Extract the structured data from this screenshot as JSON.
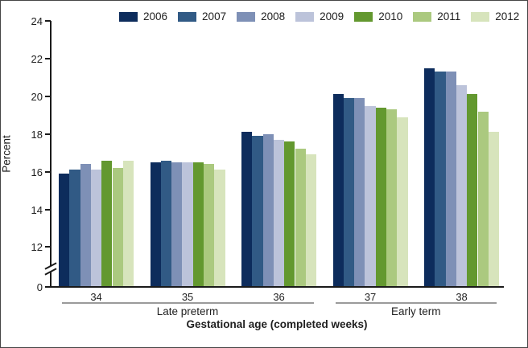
{
  "chart_data": {
    "type": "bar",
    "title": "",
    "xlabel": "Gestational age (completed weeks)",
    "ylabel": "Percent",
    "categories": [
      "34",
      "35",
      "36",
      "37",
      "38"
    ],
    "series": [
      {
        "name": "2006",
        "color": "#0d2c5c",
        "values": [
          15.9,
          16.5,
          18.1,
          20.1,
          21.5
        ]
      },
      {
        "name": "2007",
        "color": "#315a85",
        "values": [
          16.1,
          16.6,
          17.9,
          19.9,
          21.3
        ]
      },
      {
        "name": "2008",
        "color": "#7e90b6",
        "values": [
          16.4,
          16.5,
          18.0,
          19.9,
          21.3
        ]
      },
      {
        "name": "2009",
        "color": "#bcc3da",
        "values": [
          16.1,
          16.5,
          17.7,
          19.5,
          20.6
        ]
      },
      {
        "name": "2010",
        "color": "#63982f",
        "values": [
          16.6,
          16.5,
          17.6,
          19.4,
          20.1
        ]
      },
      {
        "name": "2011",
        "color": "#abc97f",
        "values": [
          16.2,
          16.4,
          17.2,
          19.3,
          19.2
        ]
      },
      {
        "name": "2012",
        "color": "#d7e4bc",
        "values": [
          16.6,
          16.1,
          16.9,
          18.9,
          18.1
        ]
      }
    ],
    "category_groups": [
      {
        "label": "Late preterm",
        "from": "34",
        "to": "36"
      },
      {
        "label": "Early term",
        "from": "37",
        "to": "38"
      }
    ],
    "y_ticks": [
      24,
      22,
      20,
      18,
      16,
      14,
      12,
      0
    ],
    "ylim": [
      0,
      24
    ],
    "axis_break_between": [
      0,
      12
    ],
    "legend_position": "top",
    "grid": false
  }
}
